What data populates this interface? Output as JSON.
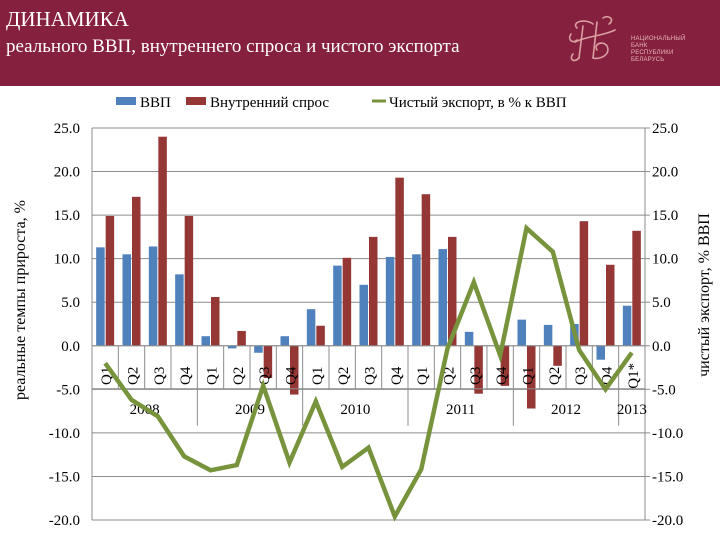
{
  "header": {
    "title": "ДИНАМИКА",
    "subtitle": "реального ВВП, внутреннего спроса и чистого экспорта",
    "logo": {
      "icon": "nbrb-monogram-icon",
      "lines": [
        "НАЦИОНАЛЬНЫЙ",
        "БАНК",
        "РЕСПУБЛИКИ",
        "БЕЛАРУСЬ"
      ]
    },
    "background_color": "#86203f"
  },
  "legend": {
    "items": [
      {
        "label": "ВВП",
        "color": "#4f81bd",
        "type": "bar"
      },
      {
        "label": "Внутренний спрос",
        "color": "#953735",
        "type": "bar"
      },
      {
        "label": "Чистый экспорт, в % к ВВП",
        "color": "#77933c",
        "type": "line"
      }
    ]
  },
  "chart_data": {
    "type": "bar",
    "title": "ДИНАМИКА реального ВВП, внутреннего спроса и чистого экспорта",
    "xlabel": "",
    "ylabel": "реальные темпы прироста, %",
    "ylabel_right": "чистый экспорт, % ВВП",
    "ylim": [
      -20,
      25
    ],
    "ylim_right": [
      -20,
      25
    ],
    "yticks": [
      "25.0",
      "20.0",
      "15.0",
      "10.0",
      "5.0",
      "0.0",
      "-5.0",
      "-10.0",
      "-15.0",
      "-20.0"
    ],
    "grid": true,
    "legend_position": "top",
    "categories": [
      "Q1",
      "Q2",
      "Q3",
      "Q4",
      "Q1",
      "Q2",
      "Q3",
      "Q4",
      "Q1",
      "Q2",
      "Q3",
      "Q4",
      "Q1",
      "Q2",
      "Q3",
      "Q4",
      "Q1",
      "Q2",
      "Q3",
      "Q4",
      "Q1*"
    ],
    "years": [
      {
        "label": "2008",
        "start": 0,
        "count": 4
      },
      {
        "label": "2009",
        "start": 4,
        "count": 4
      },
      {
        "label": "2010",
        "start": 8,
        "count": 4
      },
      {
        "label": "2011",
        "start": 12,
        "count": 4
      },
      {
        "label": "2012",
        "start": 16,
        "count": 4
      },
      {
        "label": "2013",
        "start": 20,
        "count": 1
      }
    ],
    "series": [
      {
        "name": "ВВП",
        "type": "bar",
        "color": "#4f81bd",
        "values": [
          11.3,
          10.5,
          11.4,
          8.2,
          1.1,
          -0.3,
          -0.8,
          1.1,
          4.2,
          9.2,
          7.0,
          10.2,
          10.5,
          11.1,
          1.6,
          0.0,
          3.0,
          2.4,
          2.5,
          -1.6,
          4.6
        ]
      },
      {
        "name": "Внутренний спрос",
        "type": "bar",
        "color": "#953735",
        "values": [
          14.9,
          17.1,
          24.0,
          14.9,
          5.6,
          1.7,
          -3.7,
          -5.6,
          2.3,
          10.1,
          12.5,
          19.3,
          17.4,
          12.5,
          -5.5,
          -4.6,
          -7.2,
          -2.3,
          14.3,
          9.3,
          13.2
        ]
      },
      {
        "name": "Чистый экспорт, в % к ВВП",
        "type": "line",
        "axis": "right",
        "color": "#77933c",
        "values": [
          -2.0,
          -6.2,
          -8.1,
          -12.7,
          -14.3,
          -13.7,
          -4.6,
          -13.4,
          -6.4,
          -13.9,
          -11.7,
          -19.6,
          -14.2,
          -0.3,
          7.3,
          -1.1,
          13.5,
          10.8,
          -0.5,
          -5.0,
          -0.8
        ]
      }
    ]
  }
}
